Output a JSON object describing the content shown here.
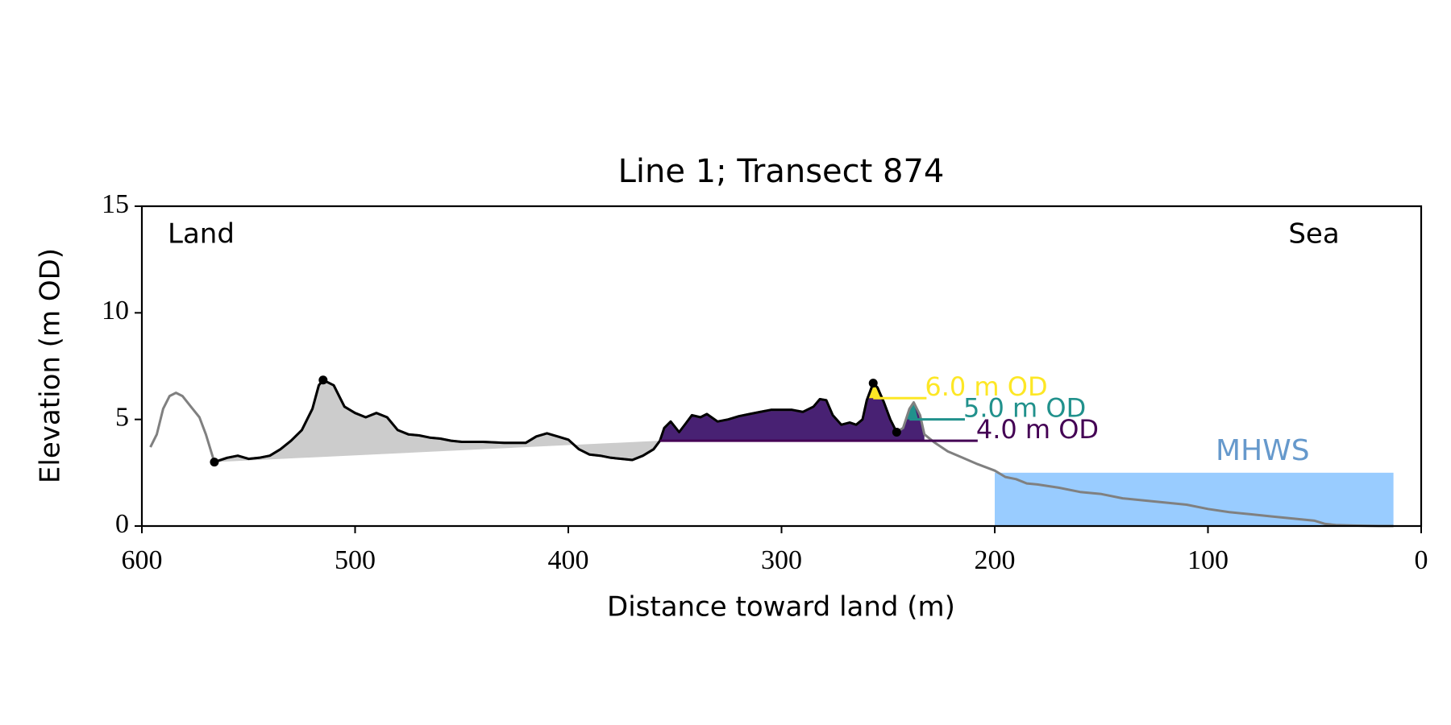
{
  "chart_data": {
    "type": "profile",
    "title": "Line 1; Transect 874",
    "x_label": "Distance toward land (m)",
    "y_label": "Elevation (m OD)",
    "land_label": "Land",
    "sea_label": "Sea",
    "xlim": [
      600,
      0
    ],
    "ylim": [
      0,
      15
    ],
    "xticks": [
      600,
      500,
      400,
      300,
      200,
      100,
      0
    ],
    "yticks": [
      0,
      5,
      10,
      15
    ],
    "series": [
      {
        "color": "#808080",
        "x": [
          596,
          593,
          590,
          587,
          584,
          581,
          577,
          573,
          570,
          566,
          560,
          555,
          550,
          545,
          540,
          535,
          530,
          525,
          520,
          517,
          515,
          510,
          505,
          500,
          495,
          490,
          485,
          480,
          475,
          470,
          465,
          460,
          455,
          450,
          440,
          430,
          420,
          415,
          410,
          405,
          400,
          395,
          390,
          385,
          380,
          375,
          370,
          365,
          360,
          357,
          355,
          352,
          348,
          345,
          342,
          338,
          335,
          330,
          325,
          320,
          315,
          310,
          305,
          300,
          295,
          290,
          285,
          282,
          279,
          276,
          272,
          268,
          265,
          262,
          260,
          257,
          255,
          252,
          249,
          246,
          243,
          240,
          238,
          235,
          233,
          228,
          222,
          215,
          208,
          200,
          195,
          190,
          185,
          180,
          170,
          160,
          150,
          140,
          130,
          120,
          110,
          100,
          90,
          80,
          70,
          60,
          50,
          45,
          40,
          30,
          20,
          13
        ],
        "values": [
          3.7,
          4.3,
          5.5,
          6.1,
          6.25,
          6.1,
          5.6,
          5.1,
          4.3,
          3.0,
          3.2,
          3.3,
          3.15,
          3.2,
          3.3,
          3.6,
          4.0,
          4.5,
          5.5,
          6.6,
          6.85,
          6.6,
          5.6,
          5.3,
          5.1,
          5.3,
          5.1,
          4.5,
          4.3,
          4.25,
          4.15,
          4.1,
          4.0,
          3.95,
          3.95,
          3.9,
          3.9,
          4.2,
          4.35,
          4.2,
          4.05,
          3.6,
          3.35,
          3.3,
          3.2,
          3.15,
          3.1,
          3.3,
          3.6,
          4.0,
          4.6,
          4.9,
          4.4,
          4.8,
          5.2,
          5.1,
          5.25,
          4.9,
          5.0,
          5.15,
          5.25,
          5.35,
          5.45,
          5.45,
          5.45,
          5.35,
          5.6,
          5.95,
          5.9,
          5.2,
          4.75,
          4.85,
          4.75,
          5.0,
          5.9,
          6.7,
          6.5,
          5.8,
          5.0,
          4.4,
          4.6,
          5.5,
          5.8,
          5.2,
          4.3,
          3.9,
          3.5,
          3.2,
          2.9,
          2.6,
          2.3,
          2.2,
          2.0,
          1.95,
          1.8,
          1.6,
          1.5,
          1.3,
          1.2,
          1.1,
          1.0,
          0.8,
          0.65,
          0.55,
          0.45,
          0.35,
          0.25,
          0.1,
          0.05,
          0.02,
          0.0,
          0.0
        ]
      },
      {
        "color": "#000000",
        "x": [
          566,
          560,
          555,
          550,
          545,
          540,
          535,
          530,
          525,
          520,
          517,
          515,
          510,
          505,
          500,
          495,
          490,
          485,
          480,
          475,
          470,
          465,
          460,
          455,
          450,
          440,
          430,
          420,
          415,
          410,
          405,
          400,
          395,
          390,
          385,
          380,
          375,
          370,
          365,
          360,
          357,
          355,
          352,
          348,
          345,
          342,
          338,
          335,
          330,
          325,
          320,
          315,
          310,
          305,
          300,
          295,
          290,
          285,
          282,
          279,
          276,
          272,
          268,
          265,
          262,
          260,
          257,
          255,
          252,
          249,
          246
        ],
        "values": [
          3.0,
          3.2,
          3.3,
          3.15,
          3.2,
          3.3,
          3.6,
          4.0,
          4.5,
          5.5,
          6.6,
          6.85,
          6.6,
          5.6,
          5.3,
          5.1,
          5.3,
          5.1,
          4.5,
          4.3,
          4.25,
          4.15,
          4.1,
          4.0,
          3.95,
          3.95,
          3.9,
          3.9,
          4.2,
          4.35,
          4.2,
          4.05,
          3.6,
          3.35,
          3.3,
          3.2,
          3.15,
          3.1,
          3.3,
          3.6,
          4.0,
          4.6,
          4.9,
          4.4,
          4.8,
          5.2,
          5.1,
          5.25,
          4.9,
          5.0,
          5.15,
          5.25,
          5.35,
          5.45,
          5.45,
          5.45,
          5.35,
          5.6,
          5.95,
          5.9,
          5.2,
          4.75,
          4.85,
          4.75,
          5.0,
          5.9,
          6.7,
          6.5,
          5.8,
          5.0,
          4.4
        ]
      }
    ],
    "baseline": {
      "color": "#cccccc",
      "x": [
        566,
        357
      ],
      "values": [
        3.0,
        4.0
      ]
    },
    "points": {
      "color": "#000000",
      "x": [
        566,
        515,
        257,
        246
      ],
      "values": [
        3.0,
        6.85,
        6.7,
        4.4
      ]
    },
    "levels": [
      {
        "value": 4.0,
        "label": "4.0 m OD",
        "color": "#440154",
        "fill": "#482173",
        "fill_range": [
          357,
          233
        ],
        "line_range": [
          357,
          208
        ]
      },
      {
        "value": 5.0,
        "label": "5.0 m OD",
        "color": "#21918c",
        "fill": "#21918c",
        "fill_range": [
          241,
          236
        ],
        "line_range": [
          240,
          214
        ]
      },
      {
        "value": 6.0,
        "label": "6.0 m OD",
        "color": "#fde725",
        "fill": "#fde725",
        "fill_range": [
          262,
          250
        ],
        "line_range": [
          257,
          232
        ]
      }
    ],
    "mhws": {
      "label": "MHWS",
      "value": 2.5,
      "x_range": [
        200,
        13
      ],
      "color": "#99ccff",
      "label_color": "#6699cc"
    }
  }
}
